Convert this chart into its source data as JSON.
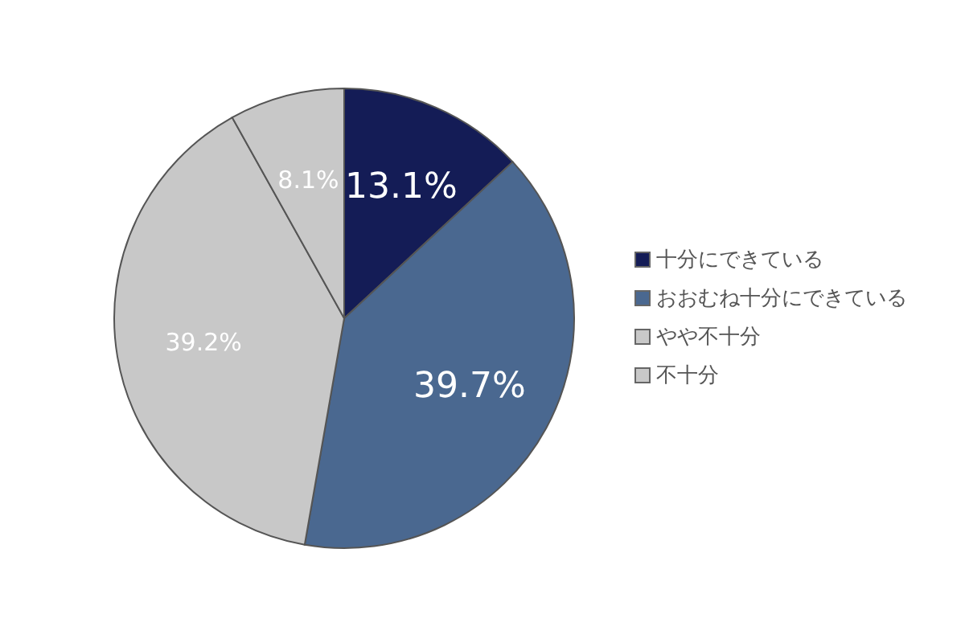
{
  "chart_data": {
    "type": "pie",
    "categories": [
      "十分にできている",
      "おおむね十分にできている",
      "やや不十分",
      "不十分"
    ],
    "values": [
      13.1,
      39.7,
      39.2,
      8.1
    ],
    "colors": [
      "#141c56",
      "#4a6890",
      "#c8c8c8",
      "#c8c8c8"
    ],
    "value_labels": [
      "13.1%",
      "39.7%",
      "39.2%",
      "8.1%"
    ],
    "legend": "right"
  }
}
